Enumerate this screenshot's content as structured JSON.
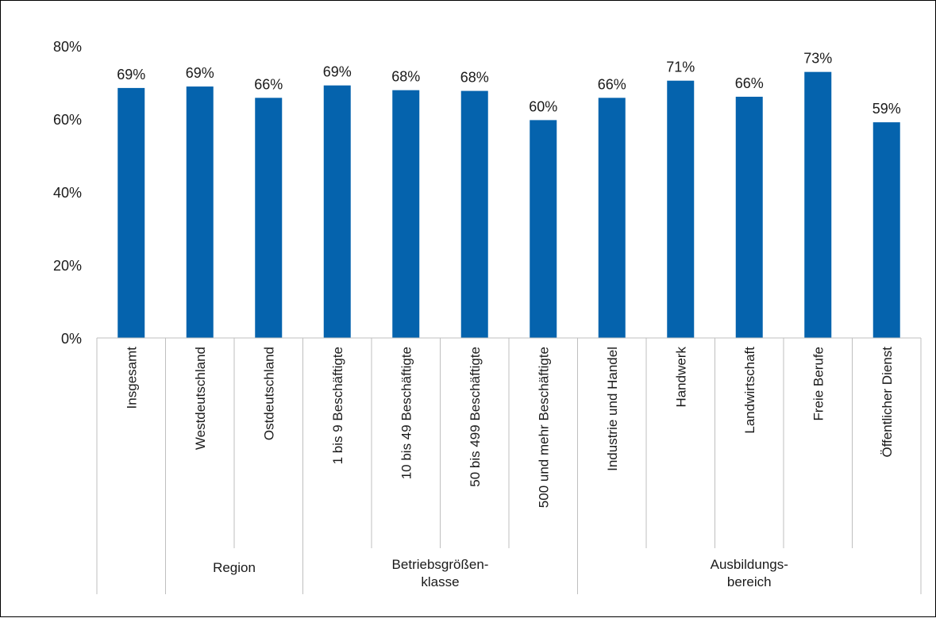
{
  "chart_data": {
    "type": "bar",
    "title": "",
    "xlabel": "",
    "ylabel": "",
    "ylim": [
      0,
      0.8
    ],
    "yticks": [
      0,
      0.2,
      0.4,
      0.6,
      0.8
    ],
    "ytick_labels": [
      "0%",
      "20%",
      "40%",
      "60%",
      "80%"
    ],
    "grid": false,
    "legend": "none",
    "bar_color": "#0563ad",
    "categories": [
      "Insgesamt",
      "Westdeutschland",
      "Ostdeutschland",
      "1 bis 9 Beschäftigte",
      "10 bis 49 Beschäftigte",
      "50 bis 499 Beschäftigte",
      "500 und mehr Beschäftigte",
      "Industrie und Handel",
      "Handwerk",
      "Landwirtschaft",
      "Freie Berufe",
      "Öffentlicher Dienst"
    ],
    "values": [
      0.685,
      0.689,
      0.658,
      0.692,
      0.679,
      0.677,
      0.597,
      0.658,
      0.705,
      0.661,
      0.729,
      0.591
    ],
    "data_labels": [
      "69%",
      "69%",
      "66%",
      "69%",
      "68%",
      "68%",
      "60%",
      "66%",
      "71%",
      "66%",
      "73%",
      "59%"
    ],
    "groups": [
      {
        "label": "",
        "start": 0,
        "end": 0
      },
      {
        "label": "Region",
        "start": 1,
        "end": 2
      },
      {
        "label": "Betriebsgrößen-\nklasse",
        "start": 3,
        "end": 6
      },
      {
        "label": "Ausbildungs-\nbereich",
        "start": 7,
        "end": 11
      }
    ]
  }
}
